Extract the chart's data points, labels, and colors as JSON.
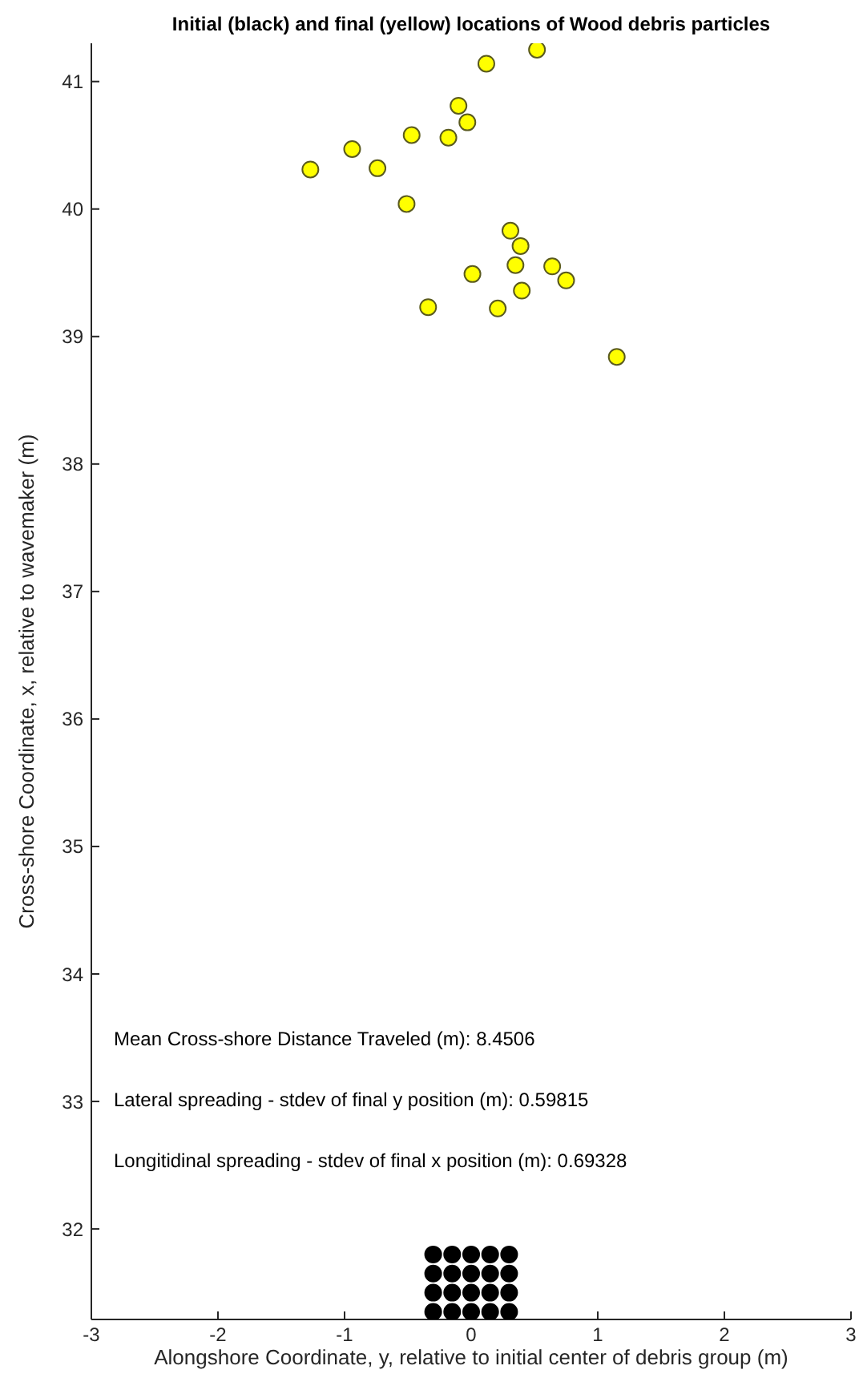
{
  "chart_data": {
    "type": "scatter",
    "title": "Initial (black) and final (yellow) locations of Wood debris particles",
    "xlabel": "Alongshore Coordinate, y, relative to initial center of debris group (m)",
    "ylabel": "Cross-shore Coordinate, x, relative to wavemaker (m)",
    "xlim": [
      -3,
      3
    ],
    "xticks": [
      -3,
      -2,
      -1,
      0,
      1,
      2,
      3
    ],
    "ylim": [
      31.29,
      41.3
    ],
    "yticks": [
      32,
      33,
      34,
      35,
      36,
      37,
      38,
      39,
      40,
      41
    ],
    "marker": "circle",
    "annotations": [
      "Mean Cross-shore Distance Traveled (m): 8.4506",
      "Lateral spreading - stdev of final y position (m): 0.59815",
      "Longitidinal spreading - stdev of final x position (m): 0.69328"
    ],
    "series": [
      {
        "color": "#000000",
        "x": [
          -0.3,
          -0.15,
          0,
          0.15,
          0.3,
          -0.3,
          -0.15,
          0,
          0.15,
          0.3,
          -0.3,
          -0.15,
          0,
          0.15,
          0.3,
          -0.3,
          -0.15,
          0,
          0.15,
          0.3
        ],
        "values": [
          31.8,
          31.8,
          31.8,
          31.8,
          31.8,
          31.65,
          31.65,
          31.65,
          31.65,
          31.65,
          31.5,
          31.5,
          31.5,
          31.5,
          31.5,
          31.35,
          31.35,
          31.35,
          31.35,
          31.35
        ]
      },
      {
        "color": "#ffff00",
        "x": [
          0.52,
          0.12,
          -0.1,
          -0.03,
          -0.47,
          -0.18,
          -0.94,
          -1.27,
          -0.74,
          -0.51,
          0.31,
          0.39,
          0.35,
          0.64,
          0.75,
          0.01,
          0.4,
          -0.34,
          0.21,
          1.15
        ],
        "values": [
          41.25,
          41.14,
          40.81,
          40.68,
          40.58,
          40.56,
          40.47,
          40.31,
          40.32,
          40.04,
          39.83,
          39.71,
          39.56,
          39.55,
          39.44,
          39.49,
          39.36,
          39.23,
          39.22,
          38.84
        ]
      }
    ]
  }
}
